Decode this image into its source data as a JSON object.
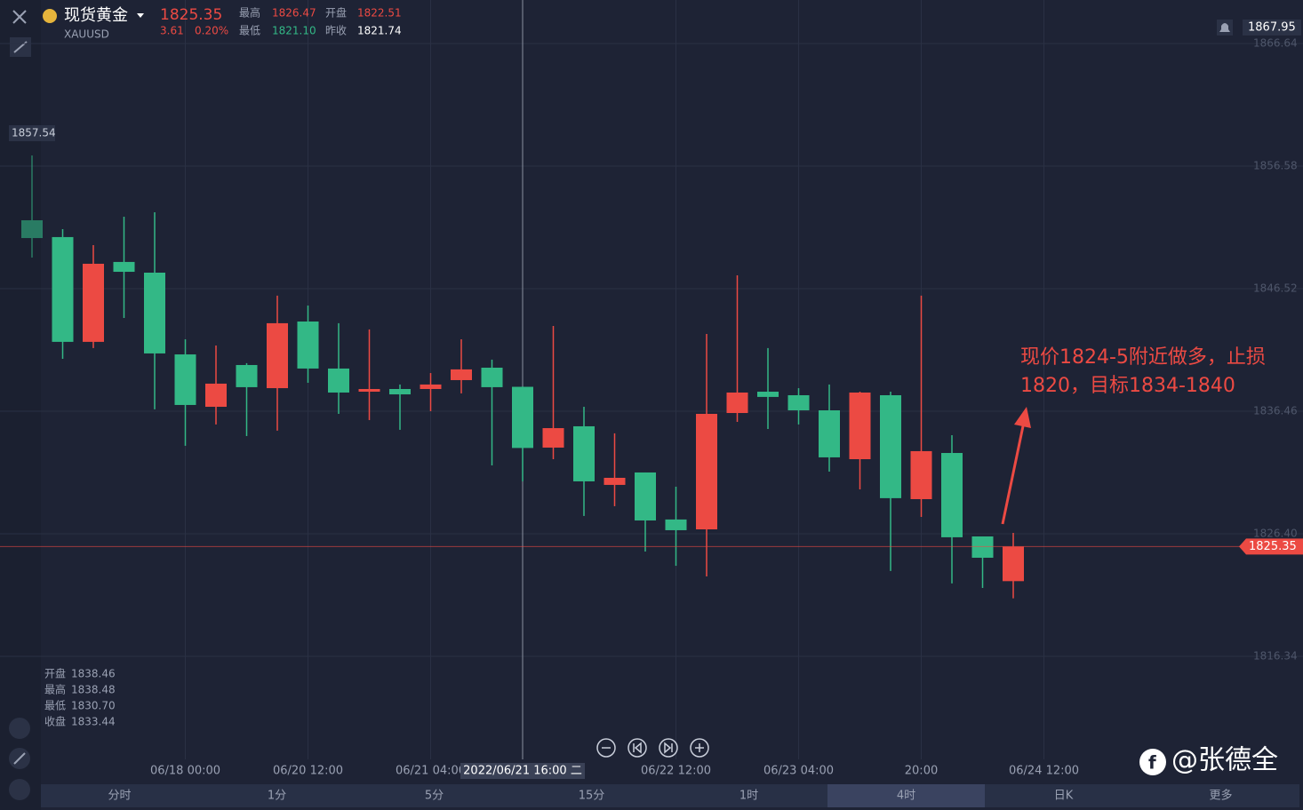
{
  "header": {
    "name": "现货黄金",
    "symbol": "XAUUSD",
    "price": "1825.35",
    "change": "3.61",
    "change_pct": "0.20%",
    "stats": [
      {
        "label": "最高",
        "value": "1826.47"
      },
      {
        "label": "开盘",
        "value": "1822.51"
      },
      {
        "label": "最低",
        "value": "1821.10"
      },
      {
        "label": "昨收",
        "value": "1821.74"
      }
    ]
  },
  "chart_data": {
    "type": "candlestick",
    "up_color": "#ec4a43",
    "down_color": "#33b886",
    "categories": [
      null,
      null,
      null,
      null,
      null,
      "06/18 00:00",
      null,
      null,
      null,
      "06/20 12:00",
      null,
      null,
      null,
      "06/21 04:00",
      null,
      null,
      null,
      null,
      null,
      null,
      null,
      "06/22 12:00",
      null,
      null,
      null,
      "06/23 04:00",
      null,
      null,
      null,
      "20:00",
      null,
      null,
      null,
      "06/24 12:00"
    ],
    "open": [
      1852.13,
      1850.75,
      1842.15,
      1848.71,
      1847.83,
      1841.12,
      1836.82,
      1840.25,
      1838.35,
      1843.82,
      1839.96,
      1838.06,
      1838.28,
      1838.28,
      1839.01,
      1840.03,
      1838.46,
      1833.47,
      1835.22,
      1830.41,
      1831.43,
      1827.57,
      1826.76,
      1836.31,
      1838.06,
      1837.77,
      1836.53,
      1832.52,
      1837.77,
      1829.24,
      1833.03,
      1826.18,
      1822.51,
      null
    ],
    "high": [
      1857.45,
      1851.4,
      1850.09,
      1852.42,
      1852.79,
      1842.36,
      1841.85,
      1840.4,
      1845.94,
      1845.13,
      1843.68,
      1843.17,
      1838.65,
      1839.59,
      1842.36,
      1840.69,
      1838.48,
      1843.46,
      1836.82,
      1834.64,
      1831.43,
      1830.26,
      1842.8,
      1847.61,
      1841.64,
      1838.35,
      1838.65,
      1838.06,
      1838.06,
      1845.94,
      1834.49,
      1826.18,
      1826.47,
      null
    ],
    "low": [
      1849.07,
      1840.76,
      1841.64,
      1844.11,
      1836.61,
      1833.62,
      1835.37,
      1834.42,
      1834.86,
      1838.79,
      1836.24,
      1835.73,
      1834.93,
      1836.46,
      1837.92,
      1832.01,
      1830.7,
      1832.52,
      1827.86,
      1828.66,
      1824.94,
      1823.77,
      1822.9,
      1835.58,
      1835,
      1835.37,
      1831.5,
      1830.04,
      1823.34,
      1827.78,
      1822.32,
      1821.95,
      1821.1,
      null
    ],
    "close": [
      1850.67,
      1842.15,
      1848.56,
      1847.9,
      1841.2,
      1836.97,
      1838.72,
      1838.43,
      1843.68,
      1839.96,
      1837.99,
      1838.28,
      1837.84,
      1838.65,
      1839.89,
      1838.43,
      1833.44,
      1835.07,
      1830.7,
      1830.99,
      1827.49,
      1826.69,
      1836.24,
      1837.99,
      1837.63,
      1836.53,
      1832.67,
      1837.99,
      1829.32,
      1833.18,
      1826.11,
      1824.43,
      1825.35,
      null
    ],
    "ylim": [
      1807.88,
      1870.21
    ],
    "yticks": [
      1866.64,
      1856.58,
      1846.52,
      1836.46,
      {
        "value": 1826.4,
        "label": "1826.40"
      },
      1816.34
    ],
    "axis_tag": 1867.95,
    "left_label": "1857.54",
    "crosshair_label": "2022/06/21 16:00 二",
    "hover": [
      {
        "label": "开盘",
        "value": "1838.46"
      },
      {
        "label": "最高",
        "value": "1838.48"
      },
      {
        "label": "最低",
        "value": "1830.70"
      },
      {
        "label": "收盘",
        "value": "1833.44"
      }
    ],
    "annotation": [
      "现价1824-5附近做多，止损",
      "1820，目标1834-1840"
    ]
  },
  "timeframes": [
    "分时",
    "1分",
    "5分",
    "15分",
    "1时",
    "4时",
    "日K",
    "更多"
  ],
  "active_timeframe": 5,
  "watermark": "@张德全"
}
